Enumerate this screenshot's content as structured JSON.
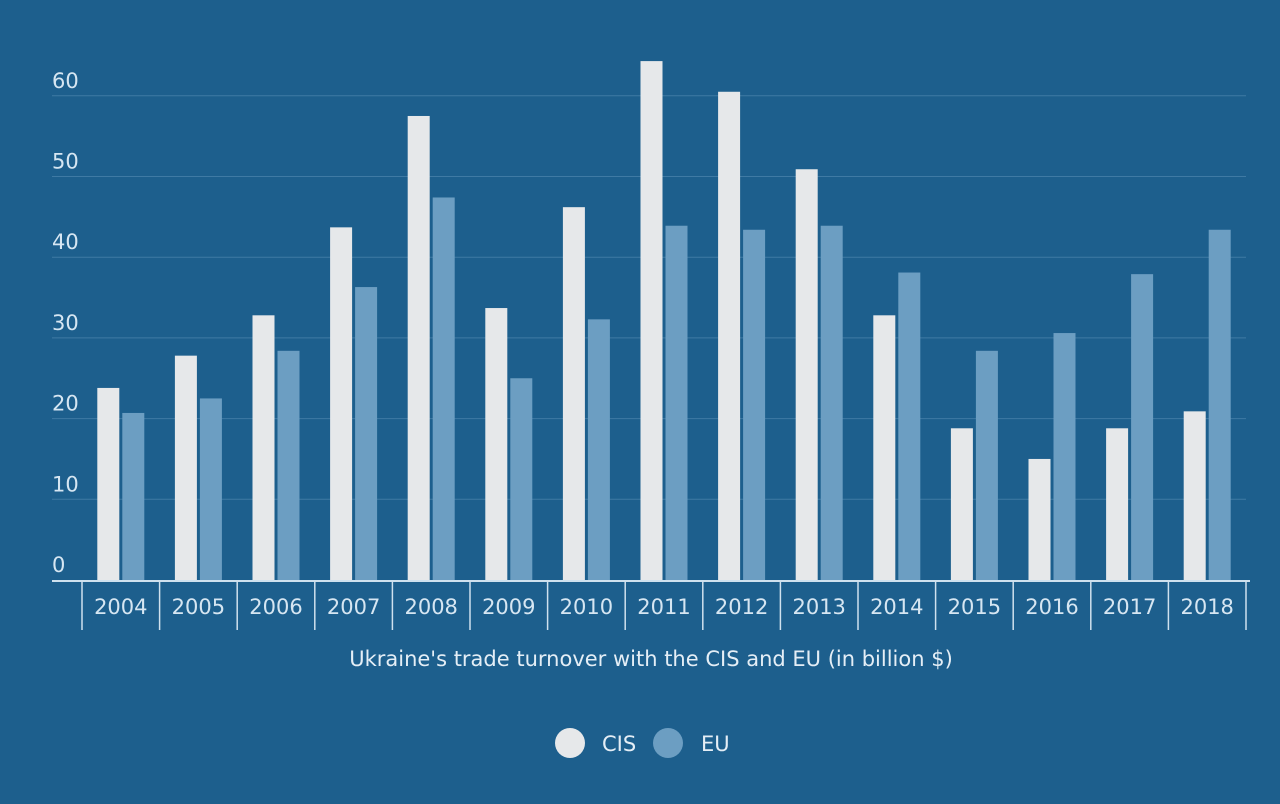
{
  "chart_data": {
    "type": "bar",
    "xlabel": "Ukraine's trade turnover with the CIS and EU (in billion $)",
    "ylabel": "",
    "ylim": [
      0,
      65
    ],
    "yticks": [
      0,
      10,
      20,
      30,
      40,
      50,
      60
    ],
    "grid": true,
    "legend_position": "bottom-center",
    "categories": [
      "2004",
      "2005",
      "2006",
      "2007",
      "2008",
      "2009",
      "2010",
      "2011",
      "2012",
      "2013",
      "2014",
      "2015",
      "2016",
      "2017",
      "2018"
    ],
    "series": [
      {
        "name": "CIS",
        "color": "#e6e8ea",
        "values": [
          23.8,
          27.8,
          32.8,
          43.7,
          57.5,
          33.7,
          46.2,
          64.3,
          60.5,
          50.9,
          32.8,
          18.8,
          15.0,
          18.8,
          20.9
        ]
      },
      {
        "name": "EU",
        "color": "#6c9ec2",
        "values": [
          20.7,
          22.5,
          28.4,
          36.3,
          47.4,
          25.0,
          32.3,
          43.9,
          43.4,
          43.9,
          38.1,
          28.4,
          30.6,
          37.9,
          43.4
        ]
      }
    ]
  },
  "colors": {
    "background": "#1d5f8d",
    "gridline": "#3f7aa4",
    "axis": "#cfe1ee"
  }
}
